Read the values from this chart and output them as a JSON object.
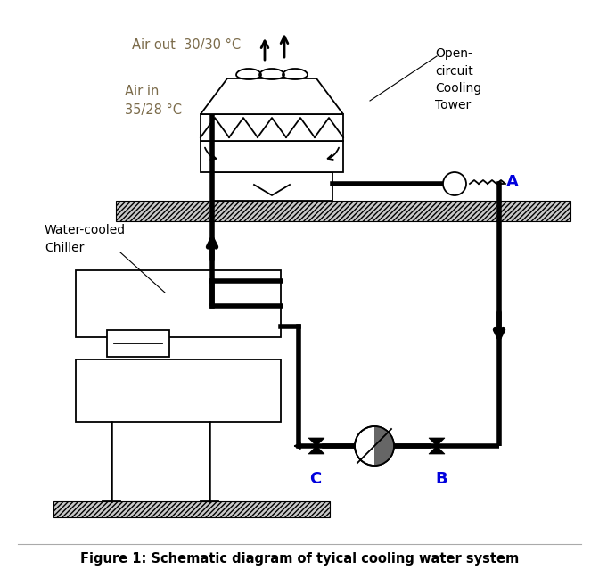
{
  "title": "Figure 1: Schematic diagram of tyical cooling water system",
  "label_air_out": "Air out  30/30 °C",
  "label_air_in": "Air in\n35/28 °C",
  "label_cooling_tower": "Open-\ncircuit\nCooling\nTower",
  "label_chiller": "Water-cooled\nChiller",
  "label_A": "A",
  "label_B": "B",
  "label_C": "C",
  "color_black": "#000000",
  "color_blue": "#0000DD",
  "color_white": "#FFFFFF",
  "color_hatch": "#CCCCCC",
  "color_airtext": "#7B6B4A",
  "lw_pipe": 4.0,
  "lw_thin": 1.3,
  "bg_color": "#FFFFFF",
  "fig_w": 6.72,
  "fig_h": 6.48,
  "dpi": 100
}
